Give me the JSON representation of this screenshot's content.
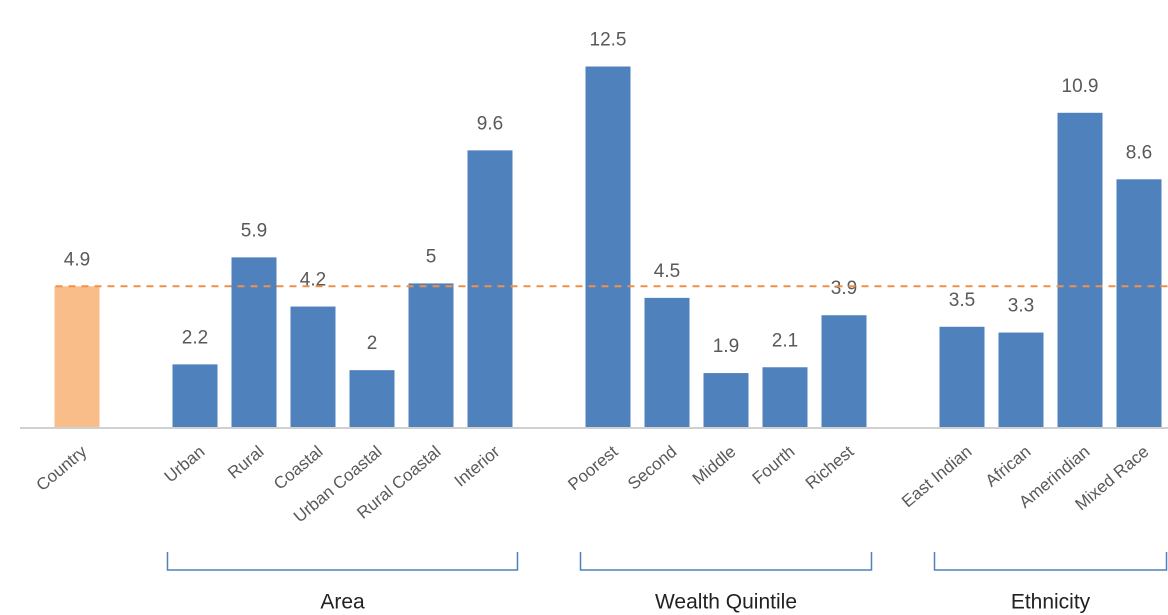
{
  "chart_data": {
    "type": "bar",
    "ylim": [
      0,
      14.8
    ],
    "reference": {
      "category": "Country",
      "value": 4.9,
      "color": "#f8bd88",
      "line_color": "#f0914a"
    },
    "groups": [
      {
        "label": "Area",
        "color": "#4f81bd",
        "categories": [
          "Urban",
          "Rural",
          "Coastal",
          "Urban Coastal",
          "Rural Coastal",
          "Interior"
        ],
        "values": [
          2.2,
          5.9,
          4.2,
          2,
          5,
          9.6
        ]
      },
      {
        "label": "Wealth Quintile",
        "color": "#4f81bd",
        "categories": [
          "Poorest",
          "Second",
          "Middle",
          "Fourth",
          "Richest"
        ],
        "values": [
          12.5,
          4.5,
          1.9,
          2.1,
          3.9
        ]
      },
      {
        "label": "Ethnicity",
        "color": "#4f81bd",
        "categories": [
          "East Indian",
          "African",
          "Amerindian",
          "Mixed Race"
        ],
        "values": [
          3.5,
          3.3,
          10.9,
          8.6
        ]
      }
    ]
  }
}
